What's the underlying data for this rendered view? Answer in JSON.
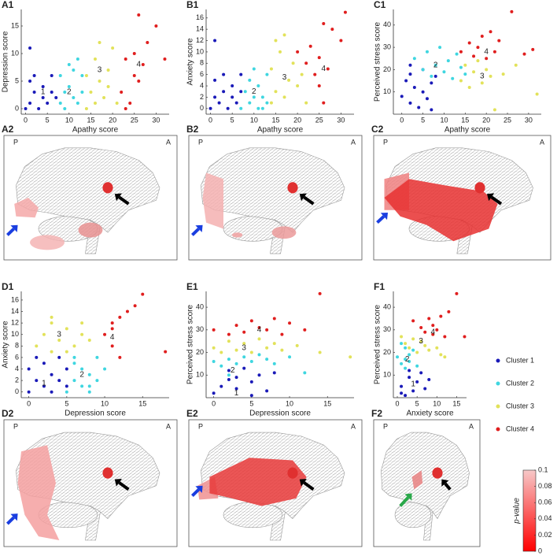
{
  "clusters": [
    {
      "name": "Cluster 1",
      "color": "#1a1ab8"
    },
    {
      "name": "Cluster 2",
      "color": "#3fd6e0"
    },
    {
      "name": "Cluster 3",
      "color": "#e2e25a"
    },
    {
      "name": "Cluster 4",
      "color": "#e01e1e"
    }
  ],
  "chart_data": [
    {
      "type": "scatter",
      "panel": "A1",
      "xlabel": "Apathy score",
      "ylabel": "Depression score",
      "xlim": [
        -1,
        33
      ],
      "xticks": [
        0,
        5,
        10,
        15,
        20,
        25,
        30
      ],
      "ylim": [
        -1,
        18
      ],
      "yticks": [
        0,
        5,
        10,
        15
      ],
      "series": [
        {
          "x": [
            0,
            1,
            1,
            2,
            2,
            3,
            4,
            4,
            5,
            6,
            6,
            7,
            1
          ],
          "y": [
            0,
            1,
            5,
            3,
            6,
            0,
            2,
            4,
            1,
            3,
            6,
            2,
            11
          ]
        },
        {
          "x": [
            8,
            8,
            9,
            9,
            10,
            10,
            11,
            11,
            12,
            12,
            13,
            13
          ],
          "y": [
            1,
            6,
            0,
            3,
            8,
            4,
            2,
            7,
            1,
            9,
            3,
            6
          ]
        },
        {
          "x": [
            14,
            14,
            15,
            16,
            16,
            17,
            17,
            18,
            19,
            19,
            20,
            21
          ],
          "y": [
            0,
            6,
            3,
            9,
            1,
            5,
            12,
            2,
            7,
            4,
            11,
            1
          ]
        },
        {
          "x": [
            22,
            23,
            24,
            25,
            26,
            26,
            27,
            28,
            30,
            32,
            23,
            25
          ],
          "y": [
            3,
            9,
            1,
            10,
            5,
            17,
            8,
            12,
            15,
            9,
            0,
            6
          ]
        }
      ],
      "annotations": [
        {
          "text": "1",
          "x": 4,
          "y": 3
        },
        {
          "text": "2",
          "x": 10,
          "y": 3
        },
        {
          "text": "3",
          "x": 17,
          "y": 7
        },
        {
          "text": "4",
          "x": 26,
          "y": 8
        }
      ]
    },
    {
      "type": "scatter",
      "panel": "B1",
      "xlabel": "Apathy score",
      "ylabel": "Anxiety score",
      "xlim": [
        -1,
        33
      ],
      "xticks": [
        0,
        5,
        10,
        15,
        20,
        25,
        30
      ],
      "ylim": [
        -1,
        17.5
      ],
      "yticks": [
        0,
        2,
        4,
        6,
        8,
        10,
        12,
        14,
        16
      ],
      "series": [
        {
          "x": [
            0,
            1,
            1,
            2,
            3,
            3,
            4,
            5,
            5,
            6,
            7,
            7,
            1
          ],
          "y": [
            0,
            2,
            5,
            1,
            3,
            6,
            0,
            2,
            4,
            1,
            3,
            6,
            12
          ]
        },
        {
          "x": [
            7,
            8,
            9,
            9,
            10,
            11,
            11,
            12,
            13,
            13,
            10,
            12
          ],
          "y": [
            0,
            3,
            1,
            5,
            2,
            0,
            4,
            2,
            6,
            1,
            7,
            0
          ]
        },
        {
          "x": [
            14,
            14,
            15,
            16,
            17,
            17,
            18,
            19,
            20,
            21,
            22,
            15
          ],
          "y": [
            1,
            7,
            3,
            10,
            2,
            13,
            5,
            8,
            4,
            6,
            1,
            12
          ]
        },
        {
          "x": [
            20,
            22,
            23,
            24,
            25,
            26,
            27,
            28,
            30,
            31,
            25,
            26
          ],
          "y": [
            10,
            8,
            11,
            6,
            9,
            15,
            7,
            14,
            12,
            17,
            4,
            1
          ]
        }
      ],
      "annotations": [
        {
          "text": "2",
          "x": 10,
          "y": 3
        },
        {
          "text": "3",
          "x": 17,
          "y": 5.5
        },
        {
          "text": "4",
          "x": 26,
          "y": 7
        }
      ]
    },
    {
      "type": "scatter",
      "panel": "C1",
      "xlabel": "Apathy score",
      "ylabel": "Perceived stress score",
      "xlim": [
        -2,
        33
      ],
      "xticks": [
        0,
        5,
        10,
        15,
        20,
        25,
        30
      ],
      "ylim": [
        0,
        47
      ],
      "yticks": [
        10,
        20,
        30,
        40
      ],
      "series": [
        {
          "x": [
            0,
            1,
            2,
            2,
            3,
            4,
            5,
            5,
            6,
            7,
            7,
            8,
            2
          ],
          "y": [
            8,
            15,
            5,
            18,
            12,
            3,
            20,
            10,
            7,
            14,
            2,
            17,
            22
          ]
        },
        {
          "x": [
            3,
            5,
            6,
            7,
            8,
            9,
            10,
            11,
            12,
            13,
            14,
            15
          ],
          "y": [
            25,
            20,
            28,
            17,
            22,
            30,
            19,
            24,
            16,
            27,
            21,
            18
          ]
        },
        {
          "x": [
            14,
            15,
            16,
            17,
            18,
            19,
            20,
            21,
            22,
            24,
            27,
            32
          ],
          "y": [
            15,
            22,
            12,
            19,
            24,
            14,
            20,
            17,
            2,
            18,
            22,
            9
          ]
        },
        {
          "x": [
            14,
            16,
            17,
            18,
            19,
            20,
            21,
            22,
            23,
            26,
            29,
            31
          ],
          "y": [
            28,
            32,
            26,
            30,
            35,
            25,
            37,
            28,
            33,
            46,
            27,
            29
          ]
        }
      ],
      "annotations": [
        {
          "text": "2",
          "x": 8,
          "y": 22
        },
        {
          "text": "3",
          "x": 19,
          "y": 17
        },
        {
          "text": "4",
          "x": 20,
          "y": 28
        }
      ]
    },
    {
      "type": "scatter",
      "panel": "D1",
      "xlabel": "Depression score",
      "ylabel": "Anxiety score",
      "xlim": [
        -1,
        18.5
      ],
      "xticks": [
        0,
        5,
        10,
        15
      ],
      "ylim": [
        -1,
        17.5
      ],
      "yticks": [
        0,
        2,
        4,
        6,
        8,
        10,
        12,
        14,
        16
      ],
      "series": [
        {
          "x": [
            0,
            0,
            1,
            1,
            2,
            2,
            3,
            3,
            4,
            4,
            5,
            5
          ],
          "y": [
            0,
            4,
            2,
            6,
            1,
            5,
            0,
            3,
            2,
            6,
            1,
            4
          ]
        },
        {
          "x": [
            5,
            6,
            6,
            7,
            7,
            8,
            8,
            9,
            9,
            10,
            6,
            8
          ],
          "y": [
            0,
            2,
            5,
            1,
            4,
            0,
            3,
            6,
            2,
            4,
            6,
            1
          ]
        },
        {
          "x": [
            1,
            2,
            3,
            3,
            4,
            5,
            6,
            7,
            8,
            3,
            5,
            7
          ],
          "y": [
            8,
            10,
            13,
            7,
            9,
            11,
            8,
            12,
            9,
            12,
            7,
            10
          ]
        },
        {
          "x": [
            10,
            11,
            11,
            12,
            12,
            13,
            14,
            15,
            18,
            11
          ],
          "y": [
            10,
            8,
            12,
            13,
            6,
            14,
            15,
            17,
            7,
            11
          ]
        }
      ],
      "annotations": [
        {
          "text": "1",
          "x": 2,
          "y": 1.5
        },
        {
          "text": "2",
          "x": 7,
          "y": 3
        },
        {
          "text": "3",
          "x": 4,
          "y": 10
        },
        {
          "text": "4",
          "x": 11,
          "y": 9.5
        }
      ]
    },
    {
      "type": "scatter",
      "panel": "E1",
      "xlabel": "Depression score",
      "ylabel": "Perceived stress score",
      "xlim": [
        -1,
        18.5
      ],
      "xticks": [
        0,
        5,
        10,
        15
      ],
      "ylim": [
        0,
        47
      ],
      "yticks": [
        10,
        20,
        30,
        40
      ],
      "series": [
        {
          "x": [
            0,
            1,
            2,
            2,
            3,
            3,
            4,
            5,
            5,
            6,
            7,
            8
          ],
          "y": [
            2,
            5,
            8,
            12,
            4,
            9,
            13,
            1,
            7,
            10,
            3,
            11
          ]
        },
        {
          "x": [
            0,
            1,
            2,
            3,
            4,
            5,
            6,
            7,
            8,
            10,
            12,
            2
          ],
          "y": [
            16,
            14,
            17,
            15,
            18,
            16,
            19,
            17,
            15,
            18,
            11,
            10
          ]
        },
        {
          "x": [
            0,
            1,
            2,
            3,
            4,
            5,
            6,
            7,
            8,
            9,
            11,
            14,
            18
          ],
          "y": [
            22,
            20,
            25,
            21,
            24,
            20,
            26,
            22,
            24,
            21,
            23,
            20,
            18
          ]
        },
        {
          "x": [
            0,
            2,
            3,
            4,
            5,
            6,
            7,
            8,
            9,
            10,
            12,
            14
          ],
          "y": [
            30,
            28,
            32,
            29,
            34,
            31,
            30,
            35,
            28,
            33,
            30,
            46
          ]
        }
      ],
      "annotations": [
        {
          "text": "1",
          "x": 3,
          "y": 2
        },
        {
          "text": "2",
          "x": 2.5,
          "y": 12
        },
        {
          "text": "3",
          "x": 4,
          "y": 22
        },
        {
          "text": "4",
          "x": 6,
          "y": 30
        }
      ]
    },
    {
      "type": "scatter",
      "panel": "F1",
      "xlabel": "Anxiety score",
      "ylabel": "Perceived stress score",
      "xlim": [
        -1,
        17.5
      ],
      "xticks": [
        0,
        5,
        10,
        15
      ],
      "ylim": [
        0,
        47
      ],
      "yticks": [
        10,
        20,
        30,
        40
      ],
      "series": [
        {
          "x": [
            1,
            2,
            3,
            4,
            5,
            6,
            7,
            8,
            1,
            3
          ],
          "y": [
            5,
            1,
            9,
            3,
            7,
            11,
            4,
            8,
            2,
            12
          ]
        },
        {
          "x": [
            0,
            1,
            2,
            2,
            3,
            3,
            4,
            5,
            1,
            2
          ],
          "y": [
            18,
            15,
            22,
            13,
            19,
            16,
            21,
            14,
            24,
            17
          ]
        },
        {
          "x": [
            1,
            2,
            3,
            4,
            5,
            6,
            7,
            8,
            9,
            10,
            11,
            12
          ],
          "y": [
            27,
            24,
            22,
            26,
            20,
            25,
            23,
            21,
            28,
            22,
            19,
            18
          ]
        },
        {
          "x": [
            4,
            6,
            7,
            8,
            9,
            9,
            10,
            11,
            12,
            13,
            15,
            17
          ],
          "y": [
            34,
            31,
            29,
            35,
            28,
            32,
            30,
            36,
            27,
            38,
            46,
            27
          ]
        }
      ],
      "annotations": [
        {
          "text": "1",
          "x": 4,
          "y": 6
        },
        {
          "text": "2",
          "x": 2.5,
          "y": 17
        },
        {
          "text": "3",
          "x": 6,
          "y": 25
        },
        {
          "text": "4",
          "x": 9,
          "y": 29
        }
      ]
    },
    {
      "type": "colorbar",
      "ylabel": "p-value",
      "ylim": [
        0,
        0.1
      ],
      "yticks": [
        0,
        0.02,
        0.04,
        0.06,
        0.08,
        0.1
      ],
      "colors": [
        "#ff0000",
        "#f7c8c8"
      ]
    }
  ],
  "brain_panels": [
    {
      "label": "A2",
      "posterior": "P",
      "anterior": "A"
    },
    {
      "label": "B2",
      "posterior": "P",
      "anterior": "A"
    },
    {
      "label": "C2",
      "posterior": "P",
      "anterior": "A"
    },
    {
      "label": "D2",
      "posterior": "P",
      "anterior": "A"
    },
    {
      "label": "E2",
      "posterior": "P",
      "anterior": "A"
    },
    {
      "label": "F2",
      "posterior": "P",
      "anterior": "A"
    }
  ]
}
